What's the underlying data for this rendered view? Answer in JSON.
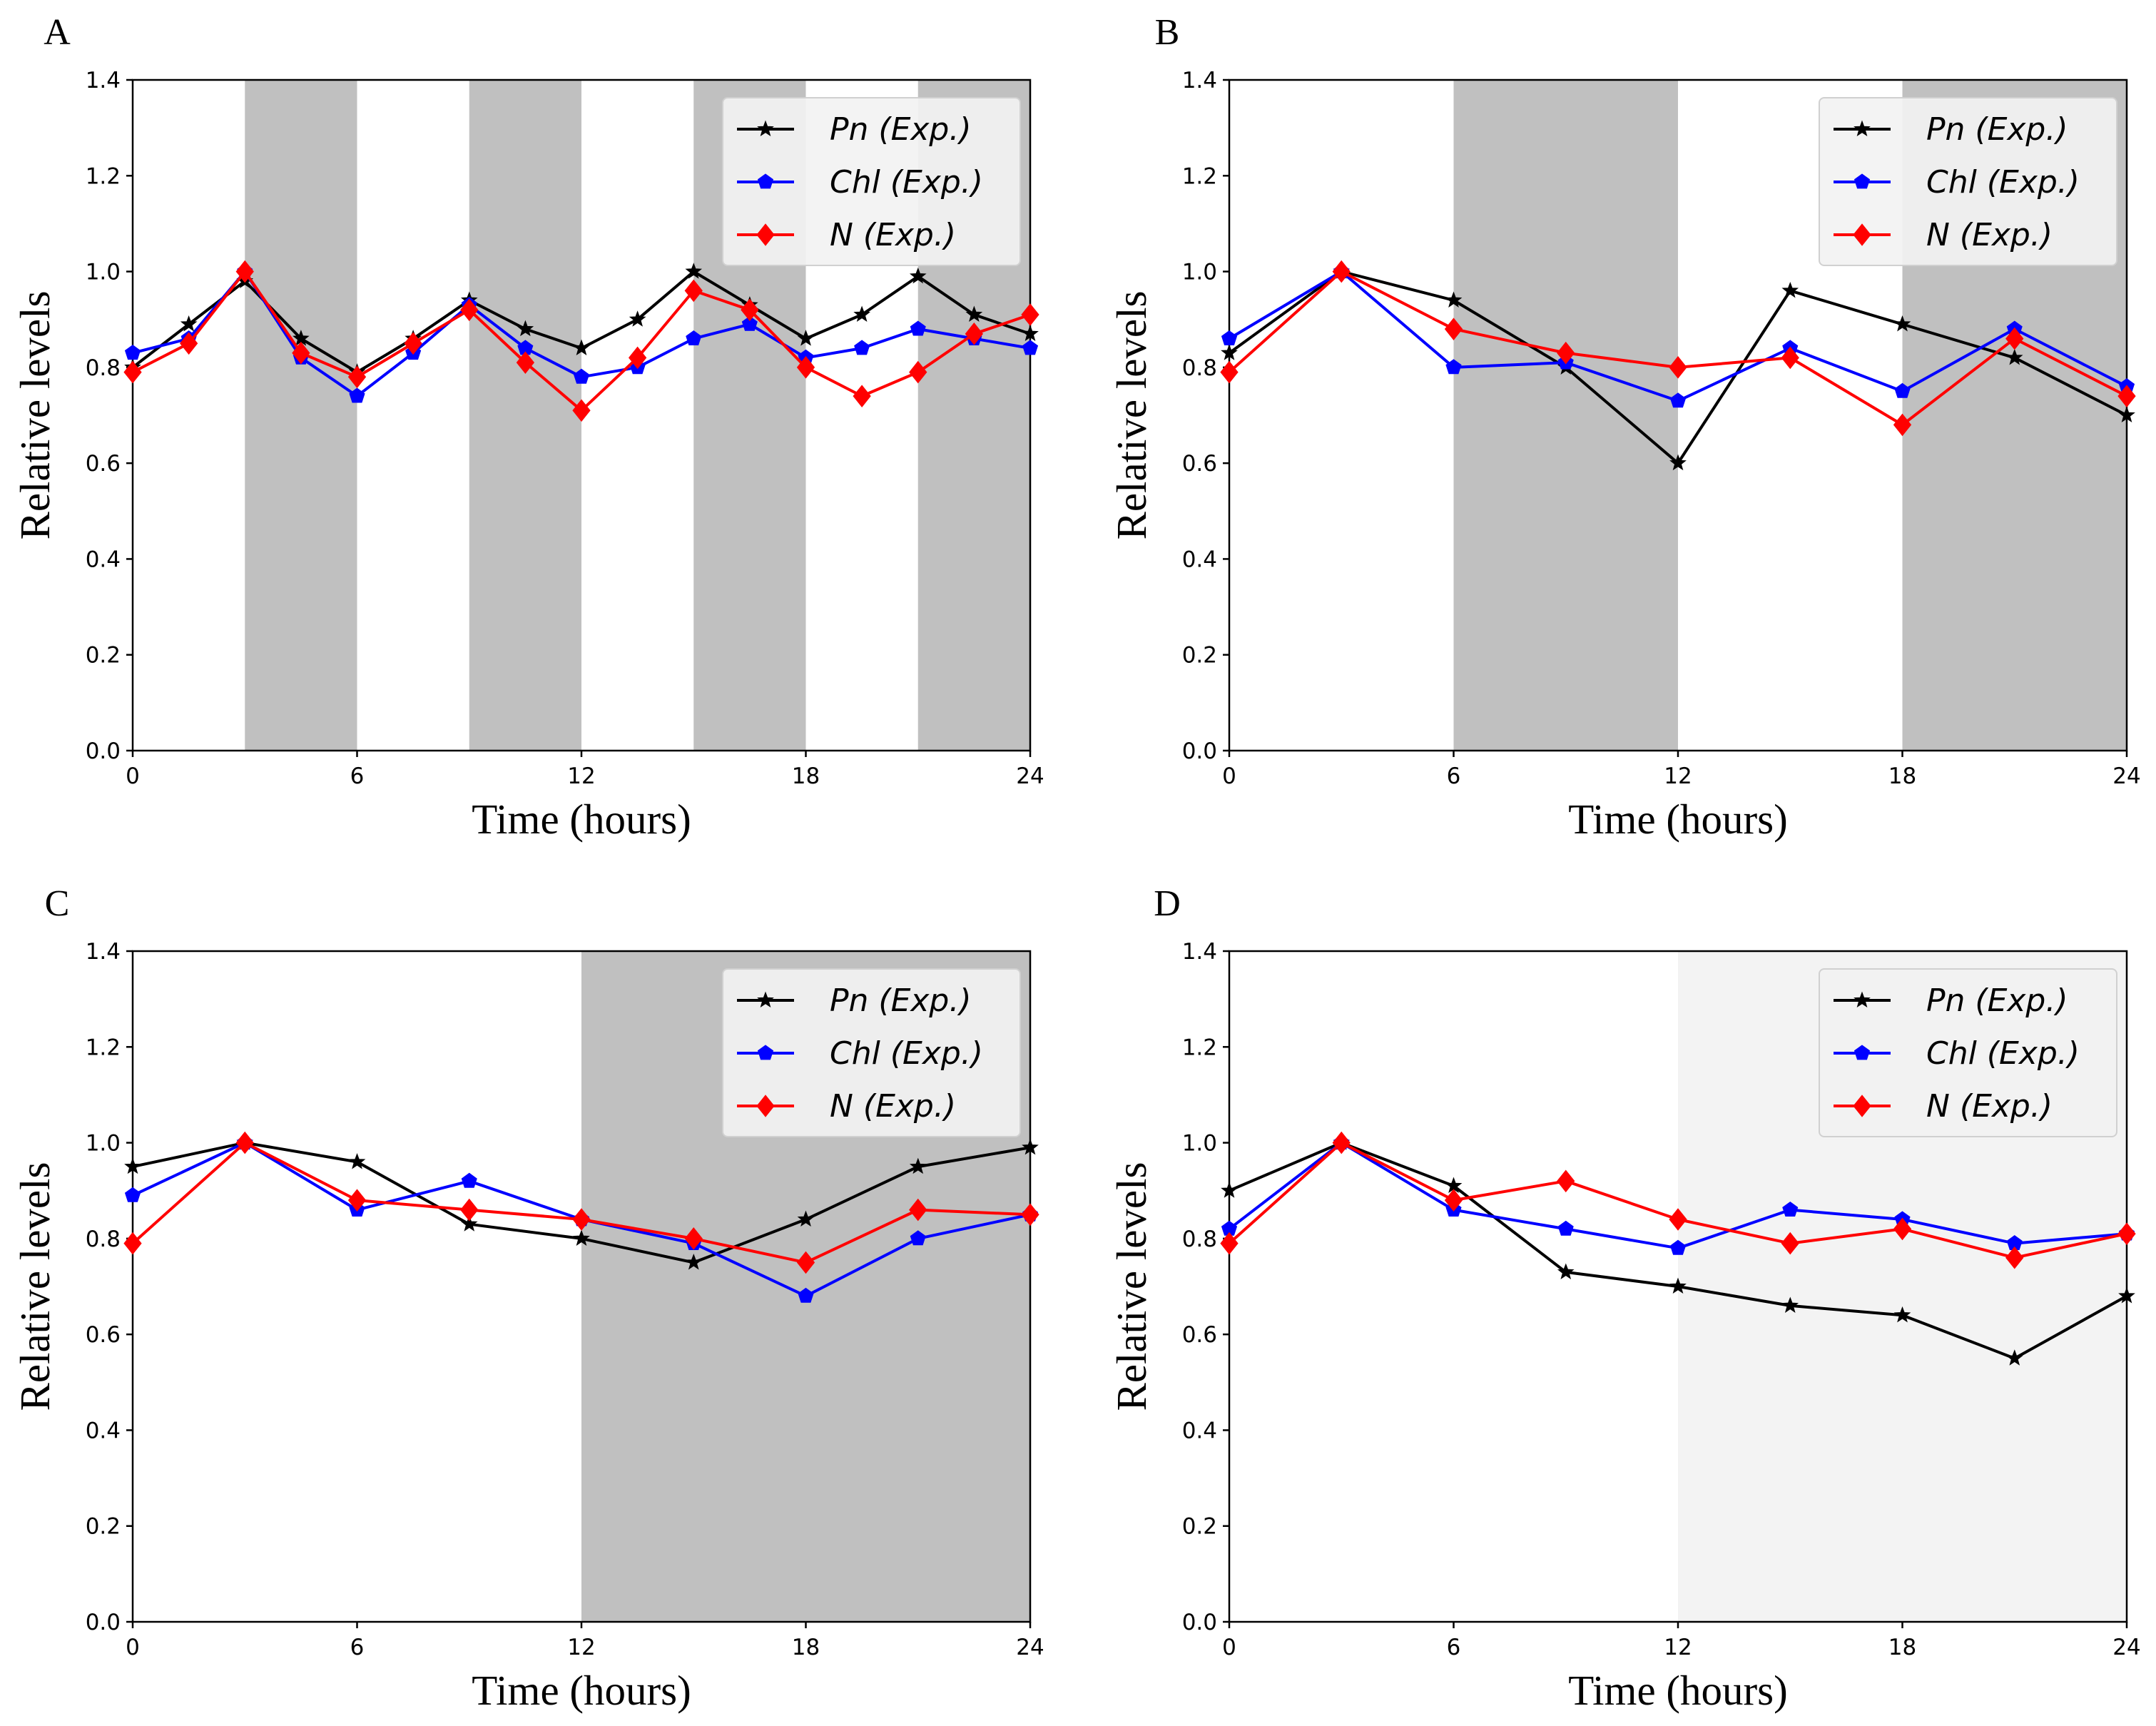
{
  "chart_data": [
    {
      "panel": "A",
      "type": "line",
      "xlabel": "Time (hours)",
      "ylabel": "Relative levels",
      "xlim": [
        0,
        24
      ],
      "ylim": [
        0,
        1.4
      ],
      "xticks": [
        "0",
        "6",
        "12",
        "18",
        "24"
      ],
      "yticks": [
        "0.0",
        "0.2",
        "0.4",
        "0.6",
        "0.8",
        "1.0",
        "1.2",
        "1.4"
      ],
      "shaded_intervals": [
        [
          3,
          6
        ],
        [
          9,
          12
        ],
        [
          15,
          18
        ],
        [
          21,
          24
        ]
      ],
      "shade_color": "#c0c0c0",
      "legend_position": "top-right",
      "series": [
        {
          "name": "Pn (Exp.)",
          "color": "#000000",
          "marker": "star",
          "x": [
            0,
            1.5,
            3,
            4.5,
            6,
            7.5,
            9,
            10.5,
            12,
            13.5,
            15,
            16.5,
            18,
            19.5,
            21,
            22.5,
            24
          ],
          "y": [
            0.8,
            0.89,
            0.98,
            0.86,
            0.79,
            0.86,
            0.94,
            0.88,
            0.84,
            0.9,
            1.0,
            0.93,
            0.86,
            0.91,
            0.99,
            0.91,
            0.87
          ]
        },
        {
          "name": "Chl (Exp.)",
          "color": "#0000ff",
          "marker": "pentagon",
          "x": [
            0,
            1.5,
            3,
            4.5,
            6,
            7.5,
            9,
            10.5,
            12,
            13.5,
            15,
            16.5,
            18,
            19.5,
            21,
            22.5,
            24
          ],
          "y": [
            0.83,
            0.86,
            1.0,
            0.82,
            0.74,
            0.83,
            0.93,
            0.84,
            0.78,
            0.8,
            0.86,
            0.89,
            0.82,
            0.84,
            0.88,
            0.86,
            0.84
          ]
        },
        {
          "name": "N (Exp.)",
          "color": "#ff0000",
          "marker": "diamond",
          "x": [
            0,
            1.5,
            3,
            4.5,
            6,
            7.5,
            9,
            10.5,
            12,
            13.5,
            15,
            16.5,
            18,
            19.5,
            21,
            22.5,
            24
          ],
          "y": [
            0.79,
            0.85,
            1.0,
            0.83,
            0.78,
            0.85,
            0.92,
            0.81,
            0.71,
            0.82,
            0.96,
            0.92,
            0.8,
            0.74,
            0.79,
            0.87,
            0.91
          ]
        }
      ]
    },
    {
      "panel": "B",
      "type": "line",
      "xlabel": "Time (hours)",
      "ylabel": "Relative levels",
      "xlim": [
        0,
        24
      ],
      "ylim": [
        0,
        1.4
      ],
      "xticks": [
        "0",
        "6",
        "12",
        "18",
        "24"
      ],
      "yticks": [
        "0.0",
        "0.2",
        "0.4",
        "0.6",
        "0.8",
        "1.0",
        "1.2",
        "1.4"
      ],
      "shaded_intervals": [
        [
          6,
          12
        ],
        [
          18,
          24
        ]
      ],
      "shade_color": "#c0c0c0",
      "legend_position": "top-right",
      "series": [
        {
          "name": "Pn (Exp.)",
          "color": "#000000",
          "marker": "star",
          "x": [
            0,
            3,
            6,
            9,
            12,
            15,
            18,
            21,
            24
          ],
          "y": [
            0.83,
            1.0,
            0.94,
            0.8,
            0.6,
            0.96,
            0.89,
            0.82,
            0.7
          ]
        },
        {
          "name": "Chl (Exp.)",
          "color": "#0000ff",
          "marker": "pentagon",
          "x": [
            0,
            3,
            6,
            9,
            12,
            15,
            18,
            21,
            24
          ],
          "y": [
            0.86,
            1.0,
            0.8,
            0.81,
            0.73,
            0.84,
            0.75,
            0.88,
            0.76
          ]
        },
        {
          "name": "N (Exp.)",
          "color": "#ff0000",
          "marker": "diamond",
          "x": [
            0,
            3,
            6,
            9,
            12,
            15,
            18,
            21,
            24
          ],
          "y": [
            0.79,
            1.0,
            0.88,
            0.83,
            0.8,
            0.82,
            0.68,
            0.86,
            0.74
          ]
        }
      ]
    },
    {
      "panel": "C",
      "type": "line",
      "xlabel": "Time (hours)",
      "ylabel": "Relative levels",
      "xlim": [
        0,
        24
      ],
      "ylim": [
        0,
        1.4
      ],
      "xticks": [
        "0",
        "6",
        "12",
        "18",
        "24"
      ],
      "yticks": [
        "0.0",
        "0.2",
        "0.4",
        "0.6",
        "0.8",
        "1.0",
        "1.2",
        "1.4"
      ],
      "shaded_intervals": [
        [
          12,
          24
        ]
      ],
      "shade_color": "#c0c0c0",
      "legend_position": "top-right",
      "series": [
        {
          "name": "Pn (Exp.)",
          "color": "#000000",
          "marker": "star",
          "x": [
            0,
            3,
            6,
            9,
            12,
            15,
            18,
            21,
            24
          ],
          "y": [
            0.95,
            1.0,
            0.96,
            0.83,
            0.8,
            0.75,
            0.84,
            0.95,
            0.99
          ]
        },
        {
          "name": "Chl (Exp.)",
          "color": "#0000ff",
          "marker": "pentagon",
          "x": [
            0,
            3,
            6,
            9,
            12,
            15,
            18,
            21,
            24
          ],
          "y": [
            0.89,
            1.0,
            0.86,
            0.92,
            0.84,
            0.79,
            0.68,
            0.8,
            0.85
          ]
        },
        {
          "name": "N (Exp.)",
          "color": "#ff0000",
          "marker": "diamond",
          "x": [
            0,
            3,
            6,
            9,
            12,
            15,
            18,
            21,
            24
          ],
          "y": [
            0.79,
            1.0,
            0.88,
            0.86,
            0.84,
            0.8,
            0.75,
            0.86,
            0.85
          ]
        }
      ]
    },
    {
      "panel": "D",
      "type": "line",
      "xlabel": "Time (hours)",
      "ylabel": "Relative levels",
      "xlim": [
        0,
        24
      ],
      "ylim": [
        0,
        1.4
      ],
      "xticks": [
        "0",
        "6",
        "12",
        "18",
        "24"
      ],
      "yticks": [
        "0.0",
        "0.2",
        "0.4",
        "0.6",
        "0.8",
        "1.0",
        "1.2",
        "1.4"
      ],
      "shaded_intervals": [
        [
          12,
          24
        ]
      ],
      "shade_color": "#f3f3f3",
      "legend_position": "top-right",
      "series": [
        {
          "name": "Pn (Exp.)",
          "color": "#000000",
          "marker": "star",
          "x": [
            0,
            3,
            6,
            9,
            12,
            15,
            18,
            21,
            24
          ],
          "y": [
            0.9,
            1.0,
            0.91,
            0.73,
            0.7,
            0.66,
            0.64,
            0.55,
            0.68
          ]
        },
        {
          "name": "Chl (Exp.)",
          "color": "#0000ff",
          "marker": "pentagon",
          "x": [
            0,
            3,
            6,
            9,
            12,
            15,
            18,
            21,
            24
          ],
          "y": [
            0.82,
            1.0,
            0.86,
            0.82,
            0.78,
            0.86,
            0.84,
            0.79,
            0.81
          ]
        },
        {
          "name": "N (Exp.)",
          "color": "#ff0000",
          "marker": "diamond",
          "x": [
            0,
            3,
            6,
            9,
            12,
            15,
            18,
            21,
            24
          ],
          "y": [
            0.79,
            1.0,
            0.88,
            0.92,
            0.84,
            0.79,
            0.82,
            0.76,
            0.81
          ]
        }
      ]
    }
  ]
}
